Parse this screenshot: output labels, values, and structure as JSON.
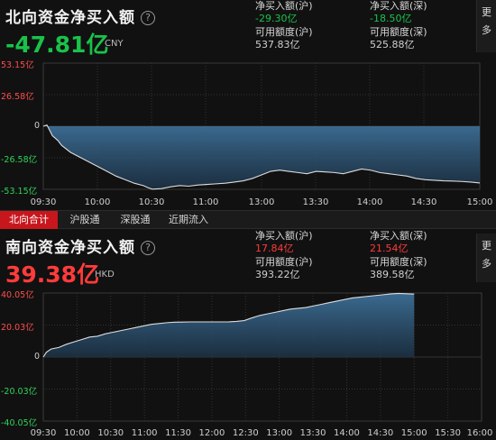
{
  "north": {
    "title": "北向资金净买入额",
    "help_icon": "question-circle-icon",
    "total": "-47.81亿",
    "total_color": "#19c24a",
    "currency": "CNY",
    "sh_label": "净买入额(沪)",
    "sh_value": "-29.30亿",
    "sz_label": "净买入额(深)",
    "sz_value": "-18.50亿",
    "sh_avail_label": "可用额度(沪)",
    "sh_avail_value": "537.83亿",
    "sz_avail_label": "可用额度(深)",
    "sz_avail_value": "525.88亿",
    "more": [
      "更",
      "多"
    ]
  },
  "south": {
    "title": "南向资金净买入额",
    "help_icon": "question-circle-icon",
    "total": "39.38亿",
    "total_color": "#ff3b3b",
    "currency": "HKD",
    "sh_label": "净买入额(沪)",
    "sh_value": "17.84亿",
    "sz_label": "净买入额(深)",
    "sz_value": "21.54亿",
    "sh_avail_label": "可用额度(沪)",
    "sh_avail_value": "393.22亿",
    "sz_avail_label": "可用额度(深)",
    "sz_avail_value": "389.58亿",
    "more": [
      "更",
      "多"
    ]
  },
  "tabs": [
    {
      "label": "北向合计",
      "active": true
    },
    {
      "label": "沪股通",
      "active": false
    },
    {
      "label": "深股通",
      "active": false
    },
    {
      "label": "近期流入",
      "active": false
    }
  ],
  "chart_data": [
    {
      "type": "area",
      "series_color": "#dddddd",
      "y_ticks": [
        "53.15亿",
        "26.58亿",
        "0",
        "-26.58亿",
        "-53.15亿"
      ],
      "ylim": [
        -53.15,
        53.15
      ],
      "x_ticks": [
        "09:30",
        "10:00",
        "10:30",
        "11:00",
        "13:00",
        "13:30",
        "14:00",
        "14:30",
        "15:00"
      ],
      "x": [
        0,
        2,
        5,
        8,
        10,
        15,
        20,
        25,
        30,
        35,
        40,
        45,
        50,
        55,
        58,
        60,
        65,
        70,
        75,
        80,
        85,
        90,
        95,
        100,
        105,
        110,
        115,
        120,
        125,
        130,
        135,
        140,
        145,
        150,
        155,
        160,
        165,
        170,
        175,
        180,
        185,
        190,
        195,
        200,
        205,
        210,
        215,
        220,
        225,
        230,
        235,
        240
      ],
      "values": [
        0,
        1,
        -8,
        -12,
        -16,
        -22,
        -26,
        -30,
        -34,
        -38,
        -42,
        -45,
        -48,
        -50,
        -52,
        -53,
        -52.5,
        -51,
        -50,
        -50.5,
        -49.5,
        -49,
        -48.5,
        -48,
        -47,
        -46,
        -44,
        -41,
        -38,
        -37,
        -38,
        -39,
        -40,
        -38,
        -38.5,
        -39,
        -40,
        -38,
        -36,
        -37,
        -39,
        -40,
        -41,
        -42,
        -44,
        -45,
        -45.5,
        -46,
        -46.2,
        -46.5,
        -47,
        -47.81
      ]
    },
    {
      "type": "area",
      "series_color": "#dddddd",
      "y_ticks": [
        "40.05亿",
        "20.03亿",
        "0",
        "-20.03亿",
        "-40.05亿"
      ],
      "ylim": [
        -40.05,
        40.05
      ],
      "x_ticks": [
        "09:30",
        "10:00",
        "10:30",
        "11:00",
        "11:30",
        "12:00",
        "12:30",
        "13:00",
        "13:30",
        "14:00",
        "14:30",
        "15:00",
        "15:30",
        "16:00"
      ],
      "x": [
        0,
        2,
        5,
        10,
        15,
        20,
        25,
        30,
        35,
        40,
        45,
        50,
        55,
        60,
        65,
        70,
        75,
        80,
        85,
        90,
        95,
        100,
        105,
        110,
        115,
        120,
        125,
        130,
        135,
        140,
        145,
        150,
        155,
        160,
        165,
        170,
        175,
        180,
        185,
        190,
        195,
        200,
        205,
        210,
        215,
        220,
        225,
        230,
        235,
        240
      ],
      "values": [
        0,
        3,
        5,
        6,
        8,
        9.5,
        11,
        12.5,
        13,
        14.5,
        15.5,
        16.5,
        17.5,
        18.5,
        19.5,
        20.5,
        21,
        21.5,
        21.8,
        21.9,
        22,
        22,
        22,
        22,
        22,
        22,
        22.3,
        22.8,
        24.5,
        26,
        27,
        28,
        29,
        30,
        30.5,
        31,
        32,
        33,
        34,
        35,
        36,
        37,
        37.5,
        38,
        38.5,
        39,
        39.5,
        39.8,
        39.6,
        39.38
      ]
    }
  ]
}
